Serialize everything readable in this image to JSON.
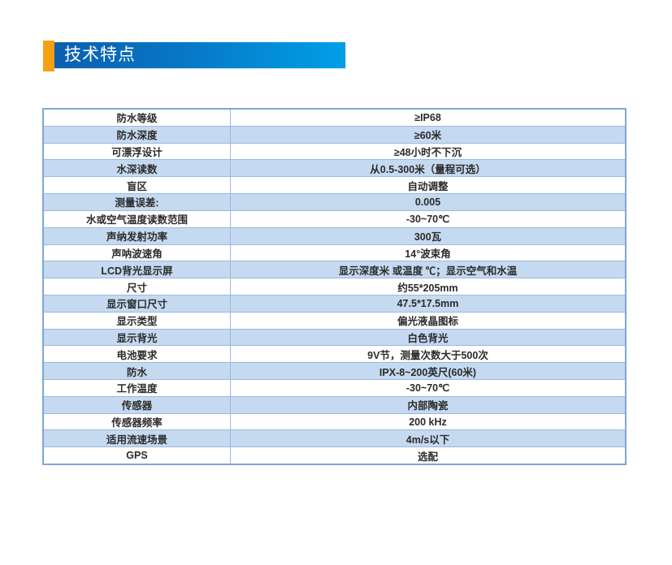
{
  "header": {
    "title": "技术特点"
  },
  "colors": {
    "accent_orange": "#F5A013",
    "banner_blue_start": "#0D5FAD",
    "banner_blue_end": "#009FE8",
    "row_alt_blue": "#C5D9F0",
    "grid_line": "#9BB9DF",
    "table_border": "#7FA7D3",
    "text": "#2B2B2B"
  },
  "table": {
    "rows": [
      {
        "label": "防水等级",
        "value": "≥IP68"
      },
      {
        "label": "防水深度",
        "value": "≥60米"
      },
      {
        "label": "可漂浮设计",
        "value": "≥48小时不下沉"
      },
      {
        "label": "水深读数",
        "value": "从0.5-300米（量程可选）"
      },
      {
        "label": "盲区",
        "value": "自动调整"
      },
      {
        "label": "测量误差:",
        "value": "0.005"
      },
      {
        "label": "水或空气温度读数范围",
        "value": "-30~70℃"
      },
      {
        "label": "声纳发射功率",
        "value": "300瓦"
      },
      {
        "label": "声呐波速角",
        "value": "14°波束角"
      },
      {
        "label": "LCD背光显示屏",
        "value": "显示深度米 或温度 ℃；显示空气和水温"
      },
      {
        "label": "尺寸",
        "value": "约55*205mm"
      },
      {
        "label": "显示窗口尺寸",
        "value": "47.5*17.5mm"
      },
      {
        "label": "显示类型",
        "value": "偏光液晶图标"
      },
      {
        "label": "显示背光",
        "value": "白色背光"
      },
      {
        "label": "电池要求",
        "value": "9V节，测量次数大于500次"
      },
      {
        "label": "防水",
        "value": "IPX-8~200英尺(60米)"
      },
      {
        "label": "工作温度",
        "value": "-30~70℃"
      },
      {
        "label": "传感器",
        "value": "内部陶瓷"
      },
      {
        "label": "传感器频率",
        "value": "200 kHz"
      },
      {
        "label": "适用流速场景",
        "value": "4m/s以下"
      },
      {
        "label": "GPS",
        "value": "选配"
      }
    ]
  }
}
